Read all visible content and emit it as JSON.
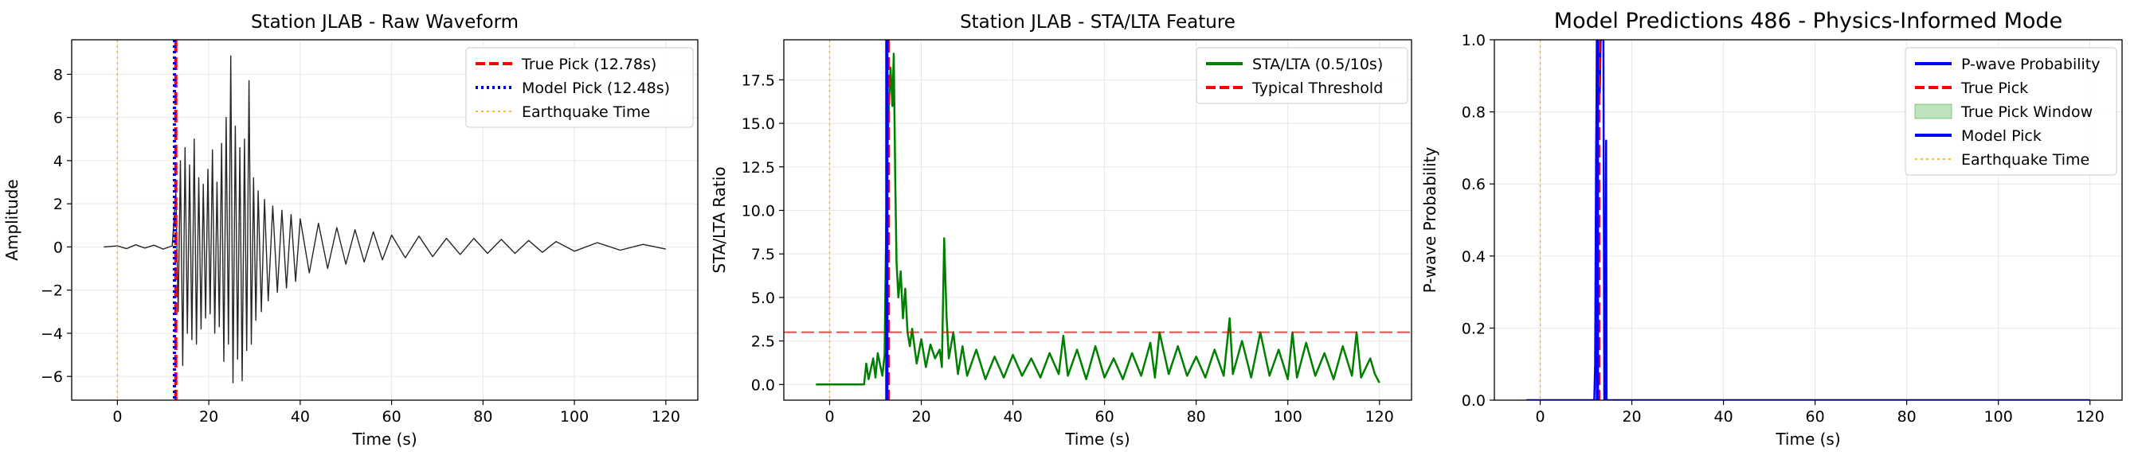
{
  "chart_data": [
    {
      "type": "line",
      "title": "Station JLAB - Raw Waveform",
      "xlabel": "Time (s)",
      "ylabel": "Amplitude",
      "xlim": [
        -10,
        127
      ],
      "ylim": [
        -7.1,
        9.6
      ],
      "xticks": [
        0,
        20,
        40,
        60,
        80,
        100,
        120
      ],
      "yticks": [
        -6,
        -4,
        -2,
        0,
        2,
        4,
        6,
        8
      ],
      "grid": true,
      "legend_position": "top-right",
      "series": [
        {
          "name": "",
          "role": "waveform",
          "color": "#000000",
          "x": [
            -3,
            0,
            2,
            4,
            6,
            8,
            10,
            12,
            12.8,
            13.3,
            13.8,
            14.3,
            14.8,
            15.3,
            15.8,
            16.3,
            16.8,
            17.3,
            17.8,
            18.3,
            18.8,
            19.3,
            19.8,
            20.3,
            20.8,
            21.3,
            21.8,
            22.3,
            22.8,
            23.3,
            23.8,
            24.3,
            24.8,
            25.3,
            25.8,
            26.3,
            26.8,
            27.3,
            27.8,
            28.3,
            28.8,
            29.3,
            29.8,
            30.3,
            30.8,
            31.5,
            32.2,
            33,
            34,
            35,
            36,
            37,
            38,
            39,
            40,
            42,
            44,
            46,
            48,
            50,
            52,
            54,
            56,
            58,
            60,
            63,
            66,
            69,
            72,
            75,
            78,
            81,
            84,
            87,
            90,
            93,
            96,
            100,
            105,
            110,
            115,
            120
          ],
          "y": [
            0,
            0.05,
            -0.08,
            0.1,
            -0.05,
            0.08,
            -0.1,
            0.05,
            2.5,
            -3.0,
            4.0,
            -5.5,
            4.6,
            -4.0,
            3.8,
            -4.3,
            5.0,
            -4.5,
            3.2,
            -3.8,
            2.9,
            -3.3,
            3.6,
            -3.1,
            4.5,
            -4.0,
            3.0,
            -3.7,
            4.8,
            -5.3,
            6.0,
            -4.5,
            8.85,
            -6.3,
            5.6,
            -5.2,
            4.6,
            -6.2,
            5.0,
            -4.8,
            7.7,
            -4.5,
            3.2,
            -3.4,
            2.6,
            -3.0,
            2.2,
            -2.5,
            1.9,
            -2.1,
            1.7,
            -1.9,
            1.5,
            -1.6,
            1.3,
            -1.2,
            1.1,
            -1.0,
            0.9,
            -0.8,
            0.8,
            -0.7,
            0.7,
            -0.6,
            0.55,
            -0.5,
            0.5,
            -0.45,
            0.4,
            -0.35,
            0.4,
            -0.3,
            0.35,
            -0.3,
            0.3,
            -0.25,
            0.25,
            -0.2,
            0.2,
            -0.15,
            0.12,
            -0.1
          ]
        },
        {
          "name": "True Pick (12.78s)",
          "role": "vline",
          "x": 12.78,
          "color": "#ff0000",
          "dash": "dashed"
        },
        {
          "name": "Model Pick (12.48s)",
          "role": "vline",
          "x": 12.48,
          "color": "#0000ff",
          "dash": "dotted"
        },
        {
          "name": "Earthquake Time",
          "role": "vline",
          "x": 0,
          "color": "#ffa500",
          "dash": "dotted"
        }
      ]
    },
    {
      "type": "line",
      "title": "Station JLAB - STA/LTA Feature",
      "xlabel": "Time (s)",
      "ylabel": "STA/LTA Ratio",
      "xlim": [
        -10,
        127
      ],
      "ylim": [
        -0.9,
        19.8
      ],
      "xticks": [
        0,
        20,
        40,
        60,
        80,
        100,
        120
      ],
      "yticks": [
        0.0,
        2.5,
        5.0,
        7.5,
        10.0,
        12.5,
        15.0,
        17.5
      ],
      "ytick_labels": [
        "0.0",
        "2.5",
        "5.0",
        "7.5",
        "10.0",
        "12.5",
        "15.0",
        "17.5"
      ],
      "grid": true,
      "legend_position": "top-right",
      "series": [
        {
          "name": "STA/LTA (0.5/10s)",
          "role": "line",
          "color": "#008000",
          "x": [
            -3,
            7.5,
            8.0,
            8.5,
            9.5,
            10.0,
            10.5,
            11.5,
            12.0,
            12.5,
            13.0,
            13.3,
            13.7,
            14.0,
            14.3,
            14.6,
            15.0,
            15.5,
            16.0,
            16.5,
            17.0,
            17.5,
            18.0,
            19.0,
            20.0,
            21.0,
            22.0,
            23.0,
            24.0,
            24.5,
            25.0,
            25.5,
            26.0,
            27.0,
            28.0,
            29.0,
            30.0,
            32.0,
            34.0,
            36.0,
            38.0,
            40.0,
            42.0,
            44.0,
            46.0,
            48.0,
            50.0,
            51.0,
            52.0,
            54.0,
            56.0,
            58.0,
            60.0,
            62.0,
            64.0,
            66.0,
            68.0,
            70.0,
            71.0,
            72.0,
            74.0,
            76.0,
            78.0,
            80.0,
            82.0,
            84.0,
            86.0,
            87.3,
            88.0,
            90.0,
            92.0,
            94.0,
            96.0,
            98.0,
            100.0,
            101.0,
            102.0,
            104.0,
            106.0,
            108.0,
            110.0,
            112.0,
            114.0,
            115.0,
            116.0,
            118.0,
            119.0,
            120.0
          ],
          "y": [
            0,
            0,
            1.2,
            0.3,
            1.5,
            0.4,
            1.8,
            0.5,
            1.7,
            12.5,
            16.5,
            18.2,
            16.0,
            19.0,
            12.0,
            7.0,
            5.0,
            6.5,
            3.8,
            5.5,
            3.0,
            2.2,
            3.2,
            1.2,
            2.6,
            1.0,
            2.3,
            1.5,
            2.0,
            1.0,
            8.4,
            4.0,
            1.5,
            3.0,
            0.6,
            2.2,
            0.5,
            2.0,
            0.3,
            1.6,
            0.4,
            1.7,
            0.5,
            1.5,
            0.4,
            1.8,
            0.6,
            2.8,
            0.5,
            2.0,
            0.3,
            2.2,
            0.4,
            1.5,
            0.3,
            1.8,
            0.5,
            2.4,
            0.4,
            3.0,
            0.6,
            2.2,
            0.5,
            1.6,
            0.4,
            2.0,
            0.5,
            3.8,
            0.6,
            2.5,
            0.4,
            3.0,
            0.5,
            2.0,
            0.3,
            3.0,
            0.4,
            2.4,
            0.5,
            1.8,
            0.3,
            2.2,
            0.5,
            3.0,
            0.4,
            1.5,
            0.6,
            0.1
          ]
        },
        {
          "name": "Typical Threshold",
          "role": "hline",
          "y": 3.0,
          "color": "#ff0000",
          "dash": "dashed"
        },
        {
          "name": "",
          "role": "vline",
          "x": 12.78,
          "color": "#ff0000",
          "dash": "dashed"
        },
        {
          "name": "",
          "role": "vline",
          "x": 12.48,
          "color": "#0000ff",
          "dash": "solid"
        },
        {
          "name": "",
          "role": "vline",
          "x": 0,
          "color": "#ffa500",
          "dash": "dotted"
        }
      ]
    },
    {
      "type": "line",
      "title": "Model Predictions 486 - Physics-Informed Mode",
      "xlabel": "Time (s)",
      "ylabel": "P-wave Probability",
      "xlim": [
        -10,
        127
      ],
      "ylim": [
        0,
        1.0
      ],
      "xticks": [
        0,
        20,
        40,
        60,
        80,
        100,
        120
      ],
      "yticks": [
        0.0,
        0.2,
        0.4,
        0.6,
        0.8,
        1.0
      ],
      "ytick_labels": [
        "0.0",
        "0.2",
        "0.4",
        "0.6",
        "0.8",
        "1.0"
      ],
      "grid": true,
      "legend_position": "top-right",
      "series": [
        {
          "name": "P-wave Probability",
          "role": "line",
          "color": "#0000ff",
          "x": [
            -3,
            11.8,
            12.0,
            12.2,
            12.4,
            12.5,
            12.7,
            12.9,
            13.0,
            13.2,
            13.5,
            13.7,
            13.8,
            14.0,
            14.2,
            14.4,
            14.5,
            14.6,
            14.8,
            15.0,
            120
          ],
          "y": [
            0,
            0,
            0.1,
            0.68,
            1.0,
            1.0,
            1.0,
            1.0,
            0.85,
            1.0,
            1.0,
            1.0,
            1.0,
            0.0,
            0.0,
            0.72,
            0.0,
            0.0,
            0.0,
            0.0,
            0
          ]
        },
        {
          "name": "True Pick",
          "role": "vline",
          "x": 12.78,
          "color": "#ff0000",
          "dash": "dashed"
        },
        {
          "name": "True Pick Window",
          "role": "span",
          "x0": 12.68,
          "x1": 12.88,
          "color": "#2ca02c"
        },
        {
          "name": "Model Pick",
          "role": "vline",
          "x": 12.48,
          "color": "#0000ff",
          "dash": "solid"
        },
        {
          "name": "Earthquake Time",
          "role": "vline",
          "x": 0,
          "color": "#ffa500",
          "dash": "dotted"
        }
      ]
    }
  ]
}
